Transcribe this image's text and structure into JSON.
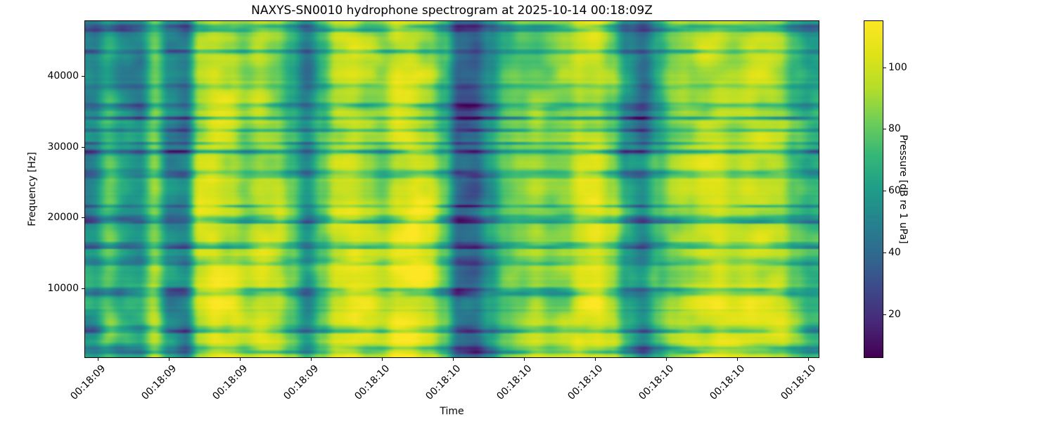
{
  "chart_data": {
    "type": "heatmap",
    "subtype": "spectrogram",
    "title": "NAXYS-SN0010 hydrophone spectrogram at 2025-10-14 00:18:09Z",
    "xlabel": "Time",
    "ylabel": "Frequency [Hz]",
    "colorbar_label": "Pressure [dB re 1 uPa]",
    "x_tick_labels": [
      "00:18:09",
      "00:18:09",
      "00:18:09",
      "00:18:09",
      "00:18:10",
      "00:18:10",
      "00:18:10",
      "00:18:10",
      "00:18:10",
      "00:18:10",
      "00:18:10"
    ],
    "y_ticks_hz": [
      10000,
      20000,
      30000,
      40000
    ],
    "y_range_hz": [
      200,
      47800
    ],
    "colorbar_ticks_db": [
      20,
      40,
      60,
      80,
      100
    ],
    "clim_db": [
      6,
      115
    ],
    "colormap": "viridis",
    "colormap_stops": [
      "#440154",
      "#482878",
      "#3e4989",
      "#31688e",
      "#26828e",
      "#1f9e89",
      "#35b779",
      "#6ece58",
      "#b5de2b",
      "#dfe318",
      "#fde725"
    ],
    "grid": false,
    "time_envelope_db": [
      55,
      76,
      62,
      58,
      86,
      52,
      48,
      96,
      104,
      100,
      88,
      97,
      92,
      76,
      55,
      78,
      100,
      104,
      96,
      88,
      102,
      105,
      99,
      80,
      42,
      38,
      58,
      76,
      84,
      88,
      83,
      86,
      101,
      104,
      90,
      62,
      50,
      72,
      86,
      92,
      100,
      104,
      97,
      101,
      99,
      97,
      80,
      68
    ],
    "texture": {
      "seed": 11,
      "blotch1": {
        "cells_t": 26,
        "cells_f": 12,
        "amp_db": 11
      },
      "blotch2": {
        "cells_t": 52,
        "cells_f": 26,
        "amp_db": 5
      },
      "streaks": {
        "cells_f": 80,
        "threshold": 0.66,
        "amp_db": 48,
        "gate_cells_t": 24,
        "gate_cells_f": 80
      },
      "fine": {
        "cells_f": 150,
        "amp_db": 3.5
      },
      "vertical_gradient_db": [
        -5,
        6
      ]
    }
  }
}
